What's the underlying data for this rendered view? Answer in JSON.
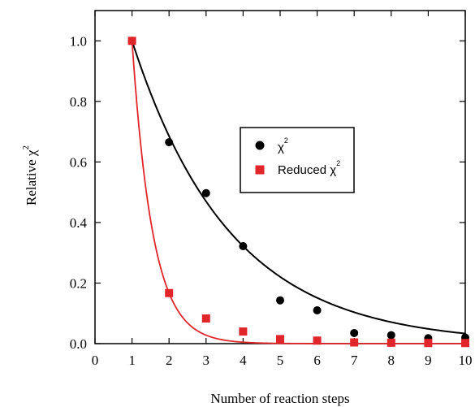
{
  "chart_data": {
    "type": "scatter",
    "xlabel": "Number of reaction steps",
    "ylabel": "Relative χ",
    "ylabel_superscript": "2",
    "xlim": [
      0,
      10
    ],
    "ylim": [
      0,
      1.1
    ],
    "x_ticks": [
      0,
      1,
      2,
      3,
      4,
      5,
      6,
      7,
      8,
      9,
      10
    ],
    "y_ticks": [
      0.0,
      0.2,
      0.4,
      0.6,
      0.8,
      1.0
    ],
    "x_tick_labels": [
      "0",
      "1",
      "2",
      "3",
      "4",
      "5",
      "6",
      "7",
      "8",
      "9",
      "10"
    ],
    "y_tick_labels": [
      "0.0",
      "0.2",
      "0.4",
      "0.6",
      "0.8",
      "1.0"
    ],
    "grid": false,
    "legend_position": "center-right",
    "series": [
      {
        "name": "χ",
        "name_superscript": "2",
        "marker": "circle",
        "color": "#000000",
        "x": [
          1,
          2,
          3,
          4,
          5,
          6,
          7,
          8,
          9,
          10
        ],
        "y": [
          1.0,
          0.665,
          0.497,
          0.322,
          0.143,
          0.11,
          0.035,
          0.028,
          0.018,
          0.02
        ],
        "fit_curve": true
      },
      {
        "name": "Reduced χ",
        "name_superscript": "2",
        "marker": "square",
        "color": "#e0262b",
        "x": [
          1,
          2,
          3,
          4,
          5,
          6,
          7,
          8,
          9,
          10
        ],
        "y": [
          1.0,
          0.167,
          0.083,
          0.04,
          0.015,
          0.01,
          0.004,
          0.003,
          0.002,
          0.002
        ],
        "fit_curve": true
      }
    ]
  }
}
